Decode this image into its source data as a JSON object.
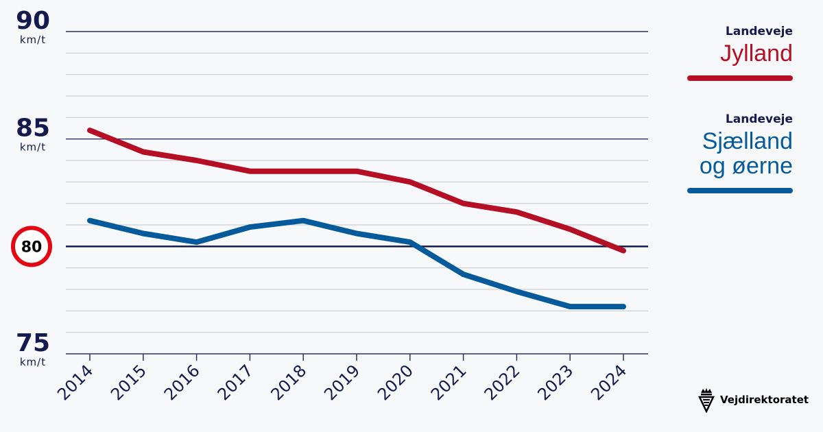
{
  "chart_data": {
    "type": "line",
    "x": [
      "2014",
      "2015",
      "2016",
      "2017",
      "2018",
      "2019",
      "2020",
      "2021",
      "2022",
      "2023",
      "2024"
    ],
    "series": [
      {
        "name": "Landeveje Jylland",
        "color": "#b40f24",
        "values": [
          85.4,
          84.4,
          84.0,
          83.5,
          83.5,
          83.5,
          83.0,
          82.0,
          81.6,
          80.8,
          79.8
        ]
      },
      {
        "name": "Landeveje Sjælland og øerne",
        "color": "#045a9a",
        "values": [
          81.2,
          80.6,
          80.2,
          80.9,
          81.2,
          80.6,
          80.2,
          78.7,
          77.9,
          77.2,
          77.2
        ]
      }
    ],
    "ylim": [
      75,
      90
    ],
    "yticks": [
      {
        "value": 90,
        "label": "90",
        "unit": "km/t"
      },
      {
        "value": 85,
        "label": "85",
        "unit": "km/t"
      },
      {
        "value": 80,
        "label": "80",
        "unit": ""
      },
      {
        "value": 75,
        "label": "75",
        "unit": "km/t"
      }
    ],
    "grid": true,
    "reference_line": {
      "value": 80,
      "label": "80",
      "style": "speed-limit-sign"
    }
  },
  "legend": {
    "jylland": {
      "small": "Landeveje",
      "big_lines": [
        "Jylland"
      ],
      "color": "#b40f24"
    },
    "sjaelland": {
      "small": "Landeveje",
      "big_lines": [
        "Sjælland",
        "og øerne"
      ],
      "color": "#045a9a"
    }
  },
  "logo": {
    "text": "Vejdirektoratet",
    "icon": "crown-shield-icon"
  }
}
